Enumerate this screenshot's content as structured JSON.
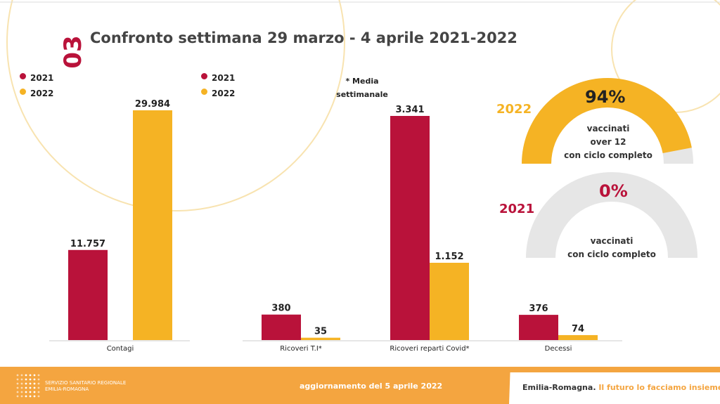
{
  "header": {
    "section_number": "03",
    "title": "Confronto settimana 29 marzo - 4 aprile  2021-2022"
  },
  "colors": {
    "y2021": "#b9123a",
    "y2022": "#f5b324",
    "gauge_bg": "#e6e6e6",
    "footer": "#f4a540"
  },
  "legend": [
    "2021",
    "2022"
  ],
  "note": {
    "line1": "* Media",
    "line2": "settimanale"
  },
  "chart_data": [
    {
      "type": "bar",
      "categories": [
        "Contagi"
      ],
      "series": [
        {
          "name": "2021",
          "values": [
            11757
          ]
        },
        {
          "name": "2022",
          "values": [
            29984
          ]
        }
      ],
      "value_labels": [
        [
          "11.757"
        ],
        [
          "29.984"
        ]
      ]
    },
    {
      "type": "bar",
      "categories": [
        "Ricoveri T.I*",
        "Ricoveri reparti Covid*",
        "Decessi"
      ],
      "series": [
        {
          "name": "2021",
          "values": [
            380,
            3341,
            376
          ]
        },
        {
          "name": "2022",
          "values": [
            35,
            1152,
            74
          ]
        }
      ],
      "value_labels": [
        [
          "380",
          "3.341",
          "376"
        ],
        [
          "35",
          "1.152",
          "74"
        ]
      ]
    }
  ],
  "gauges": [
    {
      "year": "2022",
      "percent": 94,
      "label": "94%",
      "lines": [
        "vaccinati",
        "over 12",
        "con ciclo completo"
      ]
    },
    {
      "year": "2021",
      "percent": 0,
      "label": "0%",
      "lines": [
        "vaccinati",
        "con ciclo completo"
      ]
    }
  ],
  "footer": {
    "org_line1": "SERVIZIO SANITARIO REGIONALE",
    "org_line2": "EMILIA-ROMAGNA",
    "update": "aggiornamento del 5 aprile 2022",
    "brand": "Emilia-Romagna.",
    "slogan": "Il futuro lo facciamo insieme."
  }
}
